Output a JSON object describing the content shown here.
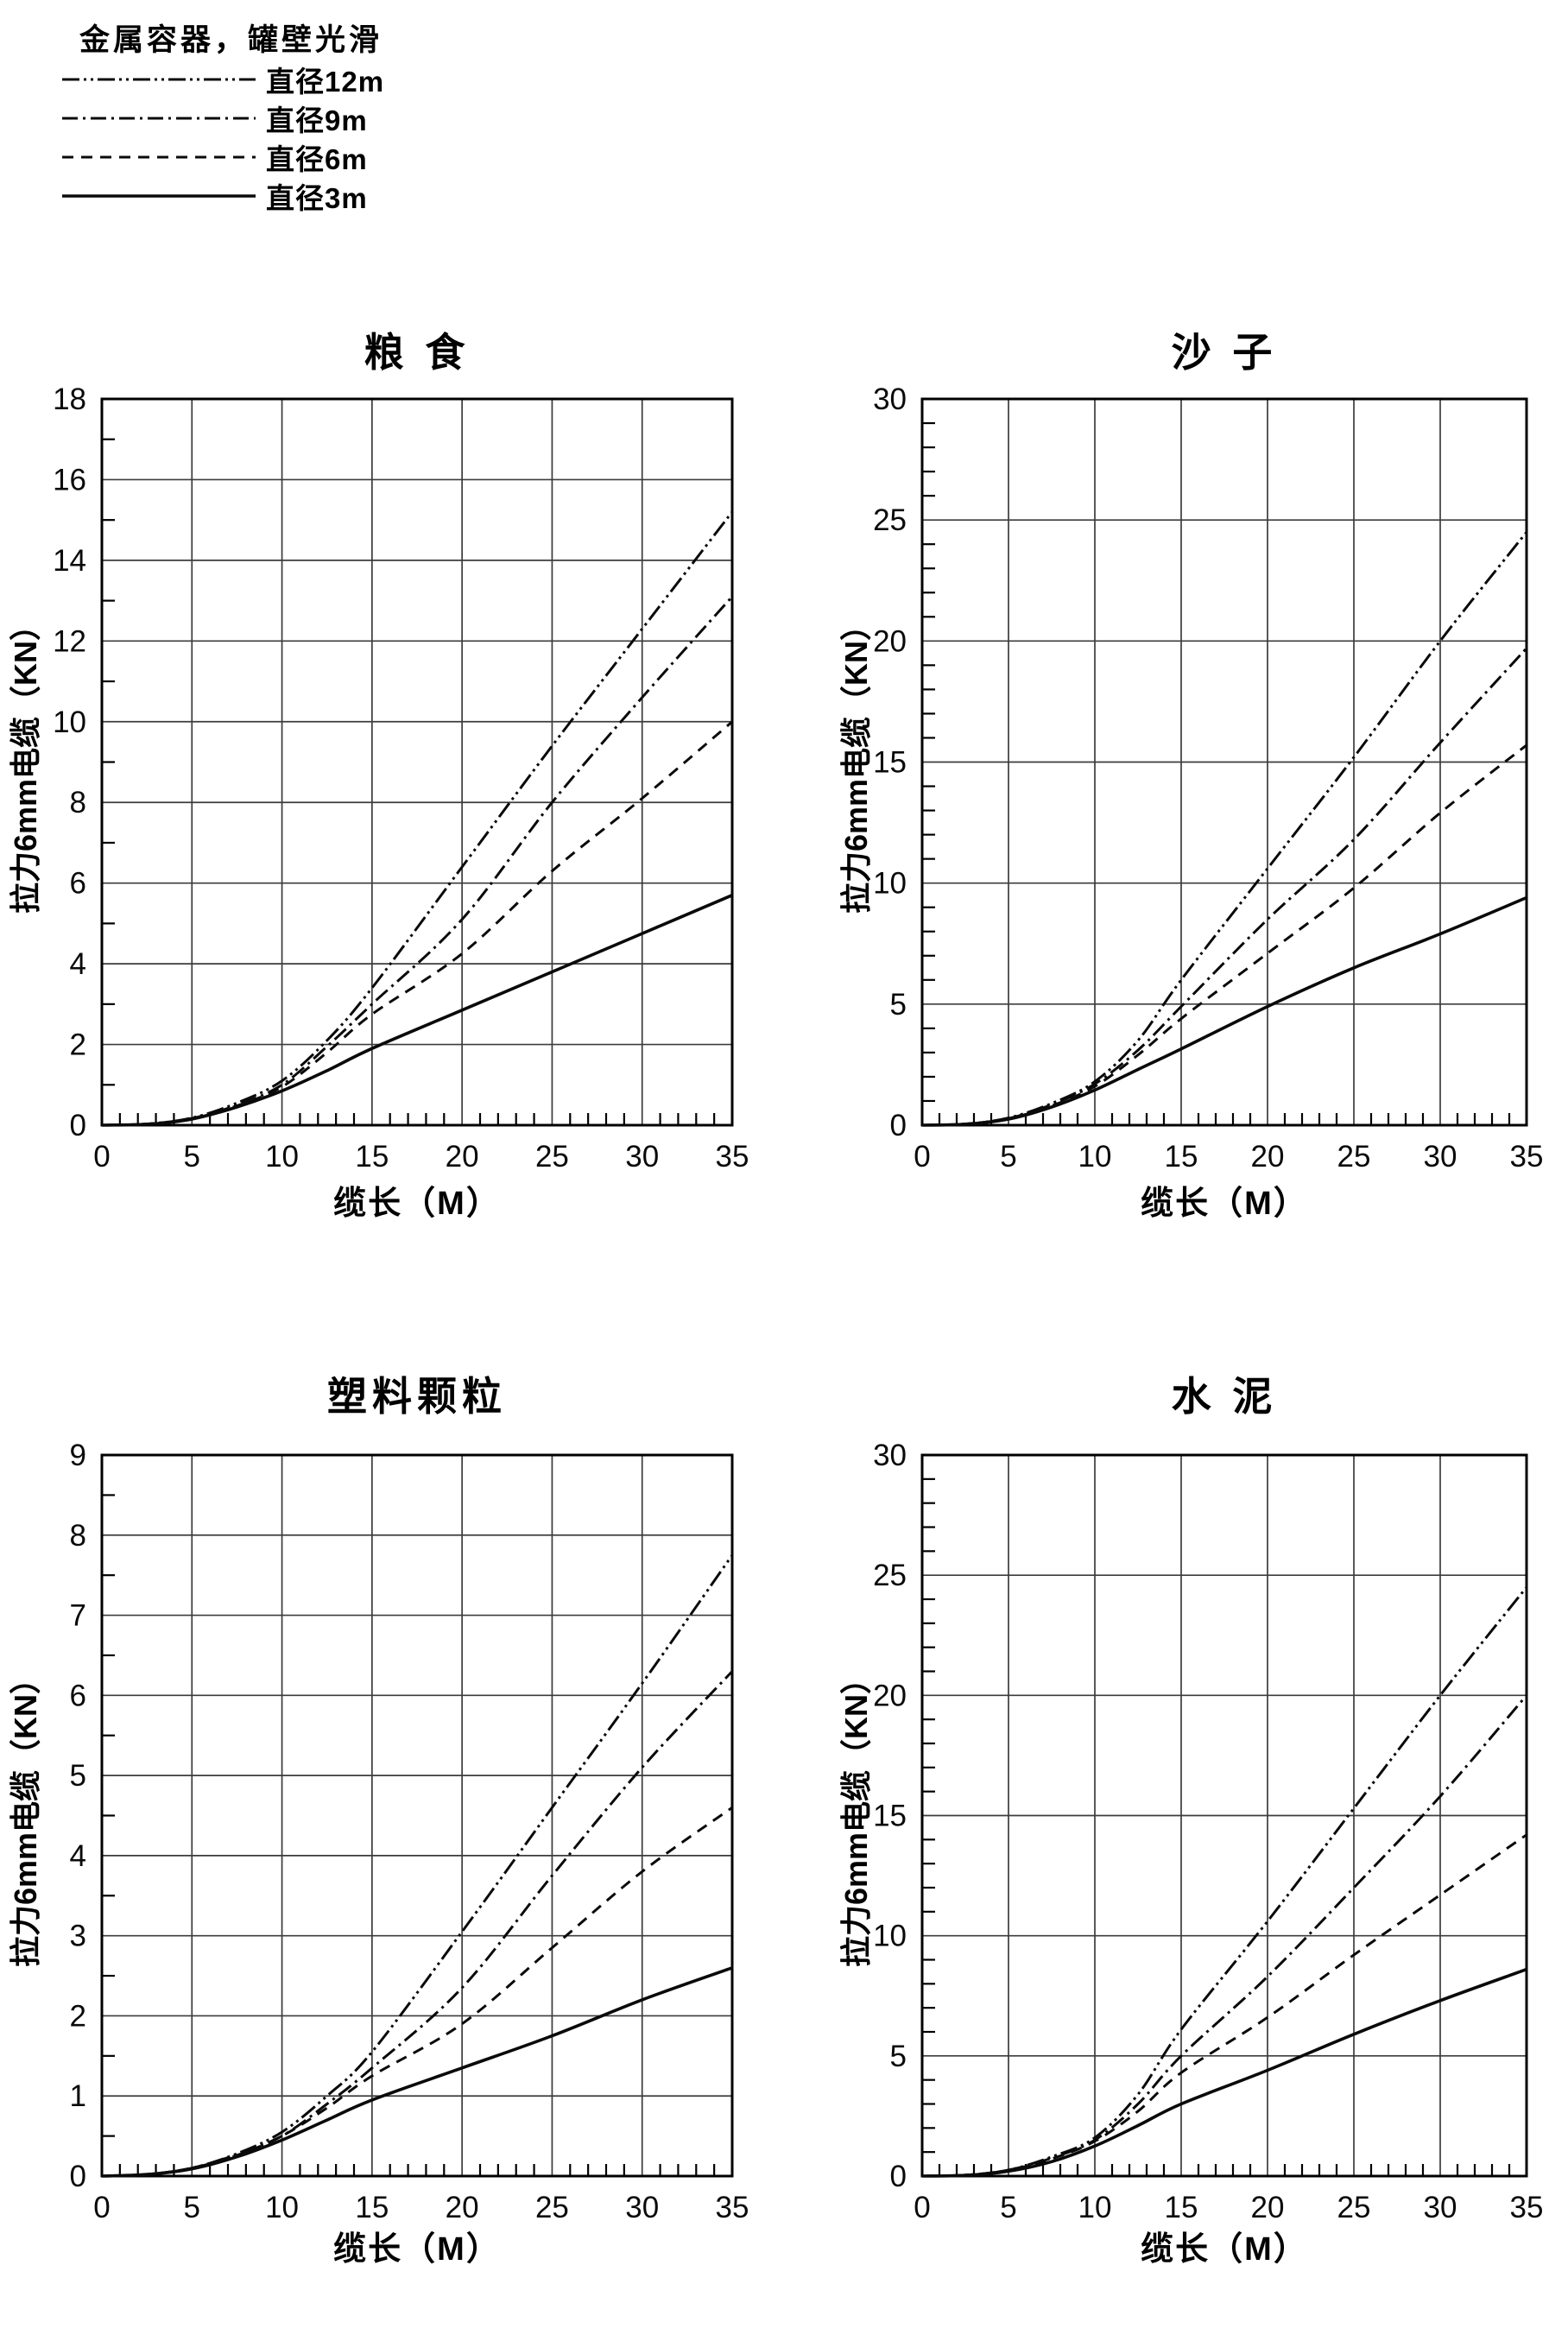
{
  "figure": {
    "background": "#ffffff",
    "ink_color": "#0a0a0a"
  },
  "legend": {
    "title": "金属容器，罐壁光滑",
    "items": [
      {
        "key": "d12",
        "label": "直径12m",
        "style": "dash-dot-dot"
      },
      {
        "key": "d9",
        "label": "直径9m",
        "style": "dash-dot"
      },
      {
        "key": "d6",
        "label": "直径6m",
        "style": "dashed"
      },
      {
        "key": "d3",
        "label": "直径3m",
        "style": "solid"
      }
    ]
  },
  "chart_data": [
    {
      "type": "line",
      "title": "粮 食",
      "xlabel": "缆长（M）",
      "ylabel": "拉力6mm电缆（KN）",
      "xlim": [
        0,
        35
      ],
      "ylim": [
        0,
        18
      ],
      "x_tick_step": 5,
      "x_minor_step": 1,
      "y_tick_step": 2,
      "y_minor_step": 1,
      "grid": true,
      "x": [
        0,
        2.5,
        5,
        7.5,
        10,
        12.5,
        15,
        20,
        25,
        30,
        35
      ],
      "series": [
        {
          "key": "d12",
          "name": "直径12m",
          "style": "dash-dot-dot",
          "values": [
            0,
            0.03,
            0.18,
            0.55,
            1.1,
            2.1,
            3.4,
            6.4,
            9.4,
            12.3,
            15.2
          ]
        },
        {
          "key": "d9",
          "name": "直径9m",
          "style": "dash-dot",
          "values": [
            0,
            0.03,
            0.17,
            0.5,
            1.0,
            1.95,
            3.0,
            5.1,
            8.0,
            10.6,
            13.1
          ]
        },
        {
          "key": "d6",
          "name": "直径6m",
          "style": "dashed",
          "values": [
            0,
            0.03,
            0.16,
            0.48,
            0.95,
            1.8,
            2.75,
            4.25,
            6.3,
            8.1,
            10.0
          ]
        },
        {
          "key": "d3",
          "name": "直径3m",
          "style": "solid",
          "values": [
            0,
            0.02,
            0.15,
            0.45,
            0.85,
            1.35,
            1.9,
            2.85,
            3.8,
            4.75,
            5.7
          ]
        }
      ]
    },
    {
      "type": "line",
      "title": "沙 子",
      "xlabel": "缆长（M）",
      "ylabel": "拉力6mm电缆（KN）",
      "xlim": [
        0,
        35
      ],
      "ylim": [
        0,
        30
      ],
      "x_tick_step": 5,
      "x_minor_step": 1,
      "y_tick_step": 5,
      "y_minor_step": 1,
      "grid": true,
      "x": [
        0,
        2.5,
        5,
        7.5,
        10,
        12.5,
        15,
        20,
        25,
        30,
        35
      ],
      "series": [
        {
          "key": "d12",
          "name": "直径12m",
          "style": "dash-dot-dot",
          "values": [
            0,
            0.05,
            0.3,
            0.9,
            1.8,
            3.5,
            6.0,
            10.6,
            15.2,
            20.0,
            24.5
          ]
        },
        {
          "key": "d9",
          "name": "直径9m",
          "style": "dash-dot",
          "values": [
            0,
            0.05,
            0.28,
            0.85,
            1.7,
            3.1,
            4.9,
            8.5,
            11.8,
            15.8,
            19.7
          ]
        },
        {
          "key": "d6",
          "name": "直径6m",
          "style": "dashed",
          "values": [
            0,
            0.05,
            0.27,
            0.8,
            1.6,
            2.9,
            4.4,
            7.1,
            9.8,
            12.9,
            15.7
          ]
        },
        {
          "key": "d3",
          "name": "直径3m",
          "style": "solid",
          "values": [
            0,
            0.04,
            0.25,
            0.75,
            1.45,
            2.3,
            3.15,
            4.9,
            6.5,
            7.9,
            9.4
          ]
        }
      ]
    },
    {
      "type": "line",
      "title": "塑料颗粒",
      "xlabel": "缆长（M）",
      "ylabel": "拉力6mm电缆（KN）",
      "xlim": [
        0,
        35
      ],
      "ylim": [
        0,
        9
      ],
      "x_tick_step": 5,
      "x_minor_step": 1,
      "y_tick_step": 1,
      "y_minor_step": 0.5,
      "grid": true,
      "x": [
        0,
        2.5,
        5,
        7.5,
        10,
        12.5,
        15,
        20,
        25,
        30,
        35
      ],
      "series": [
        {
          "key": "d12",
          "name": "直径12m",
          "style": "dash-dot-dot",
          "values": [
            0,
            0.02,
            0.1,
            0.28,
            0.55,
            1.0,
            1.55,
            3.05,
            4.6,
            6.15,
            7.75
          ]
        },
        {
          "key": "d9",
          "name": "直径9m",
          "style": "dash-dot",
          "values": [
            0,
            0.02,
            0.1,
            0.27,
            0.5,
            0.9,
            1.35,
            2.35,
            3.75,
            5.1,
            6.3
          ]
        },
        {
          "key": "d6",
          "name": "直径6m",
          "style": "dashed",
          "values": [
            0,
            0.02,
            0.1,
            0.26,
            0.5,
            0.85,
            1.25,
            1.9,
            2.85,
            3.8,
            4.6
          ]
        },
        {
          "key": "d3",
          "name": "直径3m",
          "style": "solid",
          "values": [
            0,
            0.02,
            0.09,
            0.24,
            0.45,
            0.7,
            0.95,
            1.35,
            1.75,
            2.2,
            2.6
          ]
        }
      ]
    },
    {
      "type": "line",
      "title": "水 泥",
      "xlabel": "缆长（M）",
      "ylabel": "拉力6mm电缆（KN）",
      "xlim": [
        0,
        35
      ],
      "ylim": [
        0,
        30
      ],
      "x_tick_step": 5,
      "x_minor_step": 1,
      "y_tick_step": 5,
      "y_minor_step": 1,
      "grid": true,
      "x": [
        0,
        2.5,
        5,
        7.5,
        10,
        12.5,
        15,
        20,
        25,
        30,
        35
      ],
      "series": [
        {
          "key": "d12",
          "name": "直径12m",
          "style": "dash-dot-dot",
          "values": [
            0,
            0.04,
            0.25,
            0.8,
            1.6,
            3.4,
            6.1,
            10.6,
            15.3,
            20.0,
            24.5
          ]
        },
        {
          "key": "d9",
          "name": "直径9m",
          "style": "dash-dot",
          "values": [
            0,
            0.04,
            0.25,
            0.75,
            1.5,
            3.0,
            5.0,
            8.3,
            12.0,
            15.8,
            20.0
          ]
        },
        {
          "key": "d6",
          "name": "直径6m",
          "style": "dashed",
          "values": [
            0,
            0.04,
            0.24,
            0.72,
            1.45,
            2.7,
            4.3,
            6.6,
            9.2,
            11.7,
            14.2
          ]
        },
        {
          "key": "d3",
          "name": "直径3m",
          "style": "solid",
          "values": [
            0,
            0.03,
            0.2,
            0.6,
            1.25,
            2.1,
            3.0,
            4.4,
            5.9,
            7.3,
            8.6
          ]
        }
      ]
    }
  ]
}
